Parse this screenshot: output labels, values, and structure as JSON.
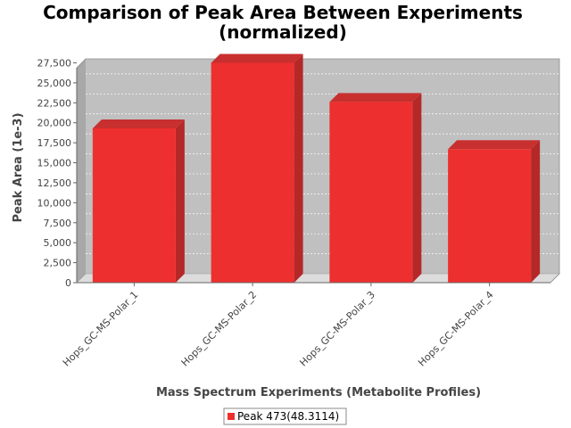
{
  "chart_data": {
    "type": "bar",
    "title_lines": [
      "Comparison of Peak Area Between Experiments",
      "(normalized)"
    ],
    "xlabel": "Mass Spectrum Experiments (Metabolite Profiles)",
    "ylabel": "Peak Area (1e-3)",
    "categories": [
      "Hops_GC-MS-Polar_1",
      "Hops_GC-MS-Polar_2",
      "Hops_GC-MS-Polar_3",
      "Hops_GC-MS-Polar_4"
    ],
    "series": [
      {
        "name": "Peak 473(48.3114)",
        "values": [
          19300,
          27500,
          22600,
          16700
        ],
        "color": "#ee2f2f"
      }
    ],
    "ylim": [
      0,
      28000
    ],
    "yticks": [
      0,
      2500,
      5000,
      7500,
      10000,
      12500,
      15000,
      17500,
      20000,
      22500,
      25000,
      27500
    ],
    "ytick_labels": [
      "0",
      "2,500",
      "5,000",
      "7,500",
      "10,000",
      "12,500",
      "15,000",
      "17,500",
      "20,000",
      "22,500",
      "25,000",
      "27,500"
    ],
    "grid": true,
    "legend_position": "bottom",
    "plot_background": "#c0c0c0"
  }
}
